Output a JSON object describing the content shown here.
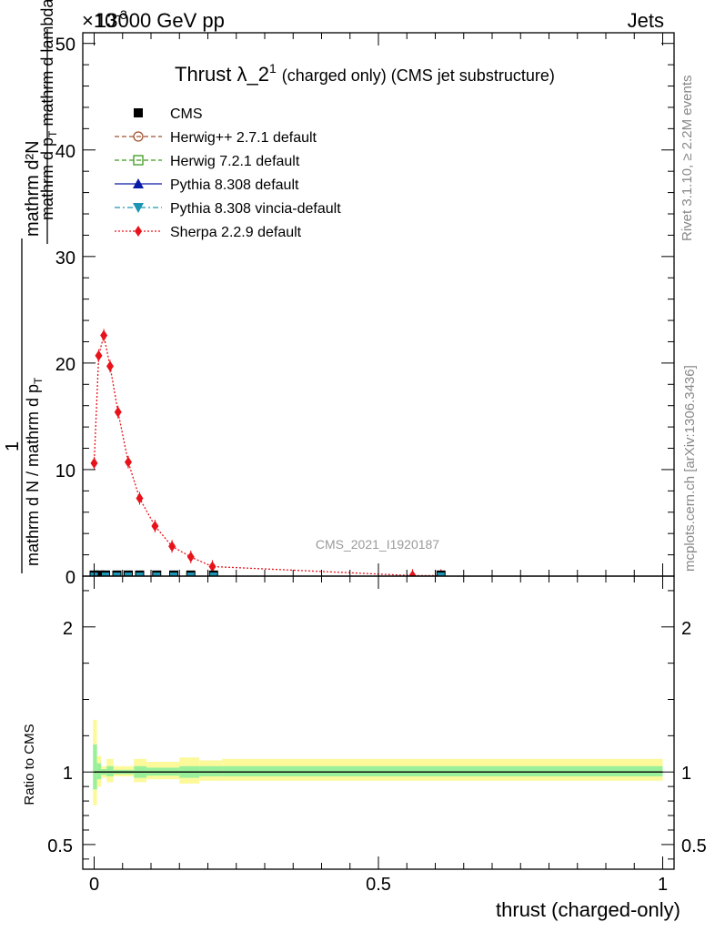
{
  "header": {
    "left": "13000 GeV pp",
    "right": "Jets",
    "exponent": "×10",
    "exponent_power": "-3"
  },
  "plot_title": {
    "main": "Thrust λ_2",
    "superscript": "1",
    "small": "(charged only) (CMS jet substructure)"
  },
  "side_labels": {
    "rivet": "Rivet 3.1.10, ≥ 2.2M events",
    "mcplots": "mcplots.cern.ch [arXiv:1306.3436]"
  },
  "watermark": "CMS_2021_I1920187",
  "y_label_main": {
    "numerator": "mathrm d²N",
    "denominator_part1": "mathrm d p",
    "denominator_sub": "T",
    "denominator_part2": " mathrm d lambda",
    "prefactor_top": "1",
    "prefactor_bottom": "mathrm d N / mathrm d p",
    "prefactor_sub": "T"
  },
  "y_label_ratio": "Ratio to CMS",
  "x_label": "thrust (charged-only)",
  "legend": [
    {
      "label": "CMS",
      "color": "#000000",
      "marker": "square-filled",
      "line": "none"
    },
    {
      "label": "Herwig++ 2.7.1 default",
      "color": "#a0522d",
      "marker": "circle-open",
      "line": "dashed"
    },
    {
      "label": "Herwig 7.2.1 default",
      "color": "#3a9a1a",
      "marker": "square-open",
      "line": "dashed"
    },
    {
      "label": "Pythia 8.308 default",
      "color": "#0a1aa8",
      "marker": "triangle-up",
      "line": "solid"
    },
    {
      "label": "Pythia 8.308 vincia-default",
      "color": "#1a95b5",
      "marker": "triangle-down",
      "line": "dashdot"
    },
    {
      "label": "Sherpa 2.2.9 default",
      "color": "#e8121a",
      "marker": "diamond",
      "line": "dotted"
    }
  ],
  "chart_data": {
    "type": "line",
    "main": {
      "x_range": [
        -0.02,
        1.02
      ],
      "y_range": [
        0,
        51
      ],
      "y_scale_label": "×10^-3",
      "y_ticks": [
        0,
        10,
        20,
        30,
        40,
        50
      ],
      "x_ticks": [
        0,
        0.5,
        1
      ],
      "grid": false,
      "legend_position": "top-left",
      "series": [
        {
          "name": "Sherpa 2.2.9 default",
          "x": [
            0.0,
            0.008,
            0.017,
            0.028,
            0.042,
            0.06,
            0.08,
            0.107,
            0.137,
            0.17,
            0.208,
            0.56,
            0.61
          ],
          "y": [
            10.6,
            20.7,
            22.6,
            19.7,
            15.4,
            10.7,
            7.3,
            4.7,
            2.8,
            1.8,
            0.9,
            0.05,
            0.05
          ]
        },
        {
          "name": "CMS",
          "x": [
            0.0,
            0.01,
            0.02,
            0.04,
            0.06,
            0.08,
            0.11,
            0.14,
            0.17,
            0.21,
            0.61
          ],
          "y": [
            0.1,
            0.1,
            0.1,
            0.1,
            0.1,
            0.1,
            0.1,
            0.1,
            0.1,
            0.1,
            0.1
          ]
        }
      ]
    },
    "ratio": {
      "y_range": [
        0.33,
        2.35
      ],
      "y_ticks": [
        0.5,
        1,
        2
      ],
      "x_ticks": [
        0,
        0.5,
        1
      ],
      "bands": [
        {
          "x0": -0.002,
          "x1": 0.005,
          "yellow": [
            0.77,
            1.36
          ],
          "green": [
            0.88,
            1.19
          ]
        },
        {
          "x0": 0.005,
          "x1": 0.012,
          "yellow": [
            0.9,
            1.11
          ],
          "green": [
            0.95,
            1.06
          ]
        },
        {
          "x0": 0.012,
          "x1": 0.022,
          "yellow": [
            0.96,
            1.04
          ],
          "green": [
            0.98,
            1.02
          ]
        },
        {
          "x0": 0.022,
          "x1": 0.034,
          "yellow": [
            0.93,
            1.09
          ],
          "green": [
            0.97,
            1.04
          ]
        },
        {
          "x0": 0.034,
          "x1": 0.07,
          "yellow": [
            0.97,
            1.04
          ],
          "green": [
            0.985,
            1.015
          ]
        },
        {
          "x0": 0.07,
          "x1": 0.092,
          "yellow": [
            0.93,
            1.09
          ],
          "green": [
            0.96,
            1.04
          ]
        },
        {
          "x0": 0.092,
          "x1": 0.15,
          "yellow": [
            0.95,
            1.07
          ],
          "green": [
            0.975,
            1.03
          ]
        },
        {
          "x0": 0.15,
          "x1": 0.185,
          "yellow": [
            0.92,
            1.1
          ],
          "green": [
            0.96,
            1.04
          ]
        },
        {
          "x0": 0.185,
          "x1": 0.225,
          "yellow": [
            0.94,
            1.08
          ],
          "green": [
            0.97,
            1.04
          ]
        },
        {
          "x0": 0.225,
          "x1": 1.0,
          "yellow": [
            0.94,
            1.09
          ],
          "green": [
            0.97,
            1.04
          ]
        }
      ],
      "reference": 1
    }
  }
}
